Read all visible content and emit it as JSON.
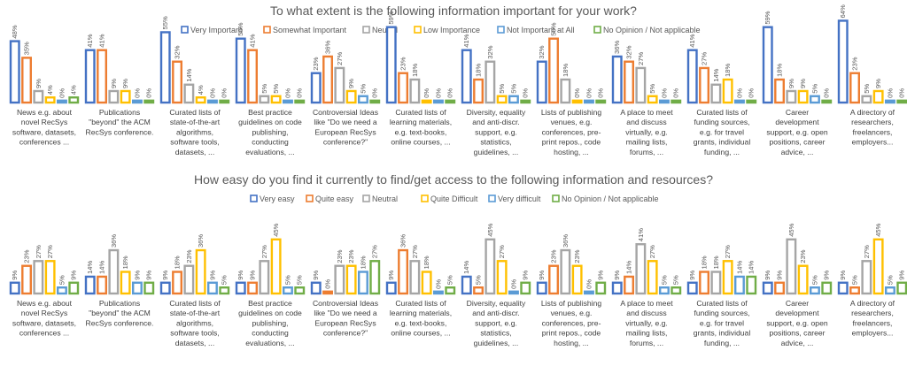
{
  "chart_data": [
    {
      "type": "bar",
      "title": "To what extent is the following information important for your work?",
      "legend_position": "top",
      "grid": false,
      "ylim": [
        0,
        65
      ],
      "categories": [
        [
          "News e.g. about",
          "novel RecSys",
          "software, datasets,",
          "conferences ..."
        ],
        [
          "Publications",
          "\"beyond\" the ACM",
          "RecSys conference."
        ],
        [
          "Curated lists of",
          "state-of-the-art",
          "algorithms,",
          "software tools,",
          "datasets, ..."
        ],
        [
          "Best practice",
          "guidelines on code",
          "publishing,",
          "conducting",
          "evaluations, ..."
        ],
        [
          "Controversial Ideas",
          "like \"Do we need a",
          "European RecSys",
          "conference?\""
        ],
        [
          "Curated lists of",
          "learning materials,",
          "e.g. text-books,",
          "online courses, ..."
        ],
        [
          "Diversity, equality",
          "and anti-discr.",
          "support, e.g.",
          "statistics,",
          "guidelines, ..."
        ],
        [
          "Lists of publishing",
          "venues, e.g.",
          "conferences, pre-",
          "print repos., code",
          "hosting, ..."
        ],
        [
          "A place to meet",
          "and discuss",
          "virtually, e.g.",
          "mailing lists,",
          "forums, ..."
        ],
        [
          "Curated lists of",
          "funding sources,",
          "e.g. for travel",
          "grants, individual",
          "funding, ..."
        ],
        [
          "Career",
          "development",
          "support, e.g. open",
          "positions, career",
          "advice, ..."
        ],
        [
          "A directory of",
          "researchers,",
          "freelancers,",
          "employers..."
        ]
      ],
      "series": [
        {
          "name": "Very Important",
          "color": "#4472c4",
          "values": [
            48,
            41,
            55,
            50,
            23,
            59,
            41,
            32,
            36,
            41,
            59,
            64
          ]
        },
        {
          "name": "Somewhat Important",
          "color": "#ed7d31",
          "values": [
            35,
            41,
            32,
            41,
            36,
            23,
            18,
            50,
            32,
            27,
            18,
            23
          ]
        },
        {
          "name": "Neutral",
          "color": "#a5a5a5",
          "values": [
            9,
            9,
            14,
            5,
            27,
            18,
            32,
            18,
            27,
            14,
            9,
            5
          ]
        },
        {
          "name": "Low Importance",
          "color": "#ffc000",
          "values": [
            4,
            9,
            4,
            5,
            9,
            0,
            5,
            0,
            5,
            18,
            9,
            9
          ]
        },
        {
          "name": "Not Important at All",
          "color": "#5b9bd5",
          "values": [
            0,
            0,
            0,
            0,
            5,
            0,
            5,
            0,
            0,
            0,
            5,
            0
          ]
        },
        {
          "name": "No Opinion / Not applicable",
          "color": "#70ad47",
          "values": [
            4,
            0,
            0,
            0,
            0,
            0,
            0,
            0,
            0,
            0,
            0,
            0
          ]
        }
      ],
      "value_labels": [
        [
          "48%",
          "41%",
          "55%",
          "50%",
          "23%",
          "59%",
          "41%",
          "32%",
          "36%",
          "41%",
          "59%",
          "64%"
        ],
        [
          "35%",
          "41%",
          "32%",
          "41%",
          "36%",
          "23%",
          "18%",
          "50%",
          "32%",
          "27%",
          "18%",
          "23%"
        ],
        [
          "9%",
          "9%",
          "14%",
          "5%",
          "27%",
          "18%",
          "32%",
          "18%",
          "27%",
          "14%",
          "9%",
          "5%"
        ],
        [
          "4%",
          "9%",
          "4%",
          "5%",
          "9%",
          "0%",
          "5%",
          "0%",
          "5%",
          "18%",
          "9%",
          "9%"
        ],
        [
          "0%",
          "0%",
          "0%",
          "0%",
          "5%",
          "0%",
          "5%",
          "0%",
          "0%",
          "0%",
          "5%",
          "0%"
        ],
        [
          "4%",
          "0%",
          "0%",
          "0%",
          "0%",
          "0%",
          "0%",
          "0%",
          "0%",
          "0%",
          "0%",
          "0%"
        ]
      ]
    },
    {
      "type": "bar",
      "title": "How easy do you find it currently to find/get access to the following information and resources?",
      "legend_position": "top",
      "grid": false,
      "ylim": [
        0,
        50
      ],
      "categories": [
        [
          "News e.g. about",
          "novel RecSys",
          "software, datasets,",
          "conferences ..."
        ],
        [
          "Publications",
          "\"beyond\" the ACM",
          "RecSys conference."
        ],
        [
          "Curated lists of",
          "state-of-the-art",
          "algorithms,",
          "software tools,",
          "datasets, ..."
        ],
        [
          "Best practice",
          "guidelines on code",
          "publishing,",
          "conducting",
          "evaluations, ..."
        ],
        [
          "Controversial Ideas",
          "like \"Do we need a",
          "European RecSys",
          "conference?\""
        ],
        [
          "Curated lists of",
          "learning materials,",
          "e.g. text-books,",
          "online courses, ..."
        ],
        [
          "Diversity, equality",
          "and anti-discr.",
          "support, e.g.",
          "statistics,",
          "guidelines, ..."
        ],
        [
          "Lists of publishing",
          "venues, e.g.",
          "conferences, pre-",
          "print repos., code",
          "hosting, ..."
        ],
        [
          "A place to meet",
          "and discuss",
          "virtually, e.g.",
          "mailing lists,",
          "forums, ..."
        ],
        [
          "Curated lists of",
          "funding sources,",
          "e.g. for travel",
          "grants, individual",
          "funding, ..."
        ],
        [
          "Career",
          "development",
          "support, e.g. open",
          "positions, career",
          "advice, ..."
        ],
        [
          "A directory of",
          "researchers,",
          "freelancers,",
          "employers..."
        ]
      ],
      "series": [
        {
          "name": "Very easy",
          "color": "#4472c4",
          "values": [
            9,
            14,
            9,
            9,
            9,
            9,
            14,
            9,
            9,
            9,
            9,
            9
          ]
        },
        {
          "name": "Quite easy",
          "color": "#ed7d31",
          "values": [
            23,
            14,
            18,
            9,
            0,
            36,
            5,
            23,
            14,
            18,
            9,
            5
          ]
        },
        {
          "name": "Neutral",
          "color": "#a5a5a5",
          "values": [
            27,
            36,
            23,
            27,
            23,
            27,
            45,
            36,
            41,
            18,
            45,
            27
          ]
        },
        {
          "name": "Quite Difficult",
          "color": "#ffc000",
          "values": [
            27,
            18,
            36,
            45,
            23,
            18,
            27,
            23,
            27,
            27,
            23,
            45
          ]
        },
        {
          "name": "Very difficult",
          "color": "#5b9bd5",
          "values": [
            5,
            9,
            9,
            5,
            18,
            0,
            0,
            0,
            5,
            14,
            5,
            5
          ]
        },
        {
          "name": "No Opinion / Not applicable",
          "color": "#70ad47",
          "values": [
            9,
            9,
            5,
            5,
            27,
            5,
            9,
            9,
            5,
            14,
            9,
            9
          ]
        }
      ],
      "value_labels": [
        [
          "9%",
          "14%",
          "9%",
          "9%",
          "9%",
          "9%",
          "14%",
          "9%",
          "9%",
          "9%",
          "9%",
          "9%"
        ],
        [
          "23%",
          "14%",
          "18%",
          "9%",
          "0%",
          "36%",
          "5%",
          "23%",
          "14%",
          "18%",
          "9%",
          "5%"
        ],
        [
          "27%",
          "36%",
          "23%",
          "27%",
          "23%",
          "27%",
          "45%",
          "36%",
          "41%",
          "18%",
          "45%",
          "27%"
        ],
        [
          "27%",
          "18%",
          "36%",
          "45%",
          "23%",
          "18%",
          "27%",
          "23%",
          "27%",
          "27%",
          "23%",
          "45%"
        ],
        [
          "5%",
          "9%",
          "9%",
          "5%",
          "18%",
          "0%",
          "0%",
          "0%",
          "5%",
          "14%",
          "5%",
          "5%"
        ],
        [
          "9%",
          "9%",
          "5%",
          "5%",
          "27%",
          "5%",
          "9%",
          "9%",
          "5%",
          "14%",
          "9%",
          "9%"
        ]
      ]
    }
  ]
}
